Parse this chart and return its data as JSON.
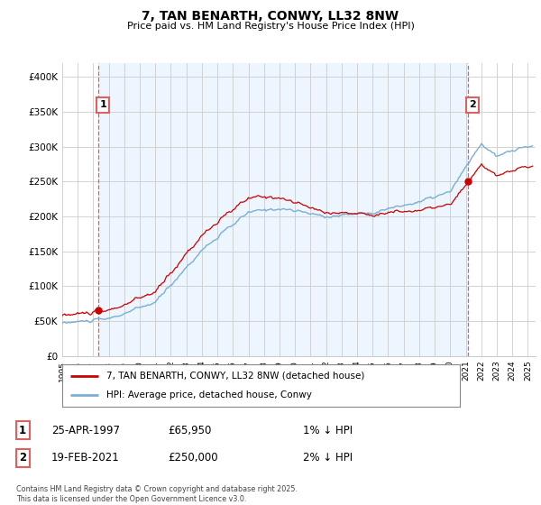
{
  "title": "7, TAN BENARTH, CONWY, LL32 8NW",
  "subtitle": "Price paid vs. HM Land Registry's House Price Index (HPI)",
  "ylabel_ticks": [
    "£0",
    "£50K",
    "£100K",
    "£150K",
    "£200K",
    "£250K",
    "£300K",
    "£350K",
    "£400K"
  ],
  "ytick_values": [
    0,
    50000,
    100000,
    150000,
    200000,
    250000,
    300000,
    350000,
    400000
  ],
  "ylim": [
    0,
    420000
  ],
  "xlim_start": 1995.0,
  "xlim_end": 2025.5,
  "purchase1_date": 1997.32,
  "purchase1_price": 65950,
  "purchase1_label": "1",
  "purchase2_date": 2021.13,
  "purchase2_price": 250000,
  "purchase2_label": "2",
  "legend_line1": "7, TAN BENARTH, CONWY, LL32 8NW (detached house)",
  "legend_line2": "HPI: Average price, detached house, Conwy",
  "ann1_box": "1",
  "ann1_date": "25-APR-1997",
  "ann1_price": "£65,950",
  "ann1_hpi": "1% ↓ HPI",
  "ann2_box": "2",
  "ann2_date": "19-FEB-2021",
  "ann2_price": "£250,000",
  "ann2_hpi": "2% ↓ HPI",
  "footer": "Contains HM Land Registry data © Crown copyright and database right 2025.\nThis data is licensed under the Open Government Licence v3.0.",
  "hpi_color": "#7aafd4",
  "price_color": "#cc0000",
  "vline_color": "#e06060",
  "shade_color": "#ddeeff",
  "background_color": "#ffffff",
  "grid_color": "#cccccc"
}
